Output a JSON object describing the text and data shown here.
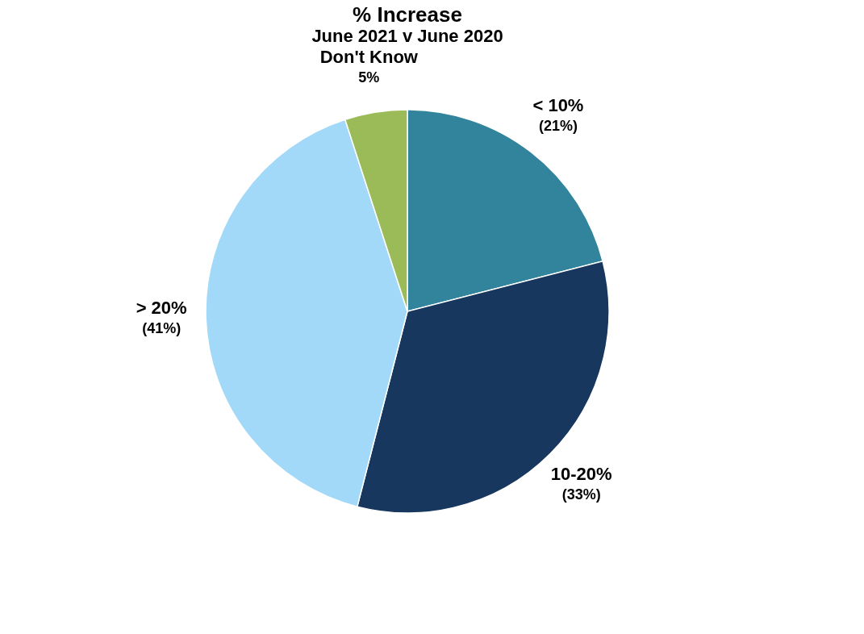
{
  "chart_data": {
    "type": "pie",
    "title": "% Increase",
    "subtitle": "June 2021 v June 2020",
    "categories": [
      "< 10%",
      "10-20%",
      "> 20%",
      "Don't Know"
    ],
    "values": [
      21,
      33,
      41,
      5
    ],
    "colors": [
      "#31849b",
      "#17375e",
      "#a3d9f8",
      "#9bbb59"
    ],
    "value_labels": [
      "(21%)",
      "(33%)",
      "(41%)",
      "5%"
    ],
    "legend": false
  }
}
